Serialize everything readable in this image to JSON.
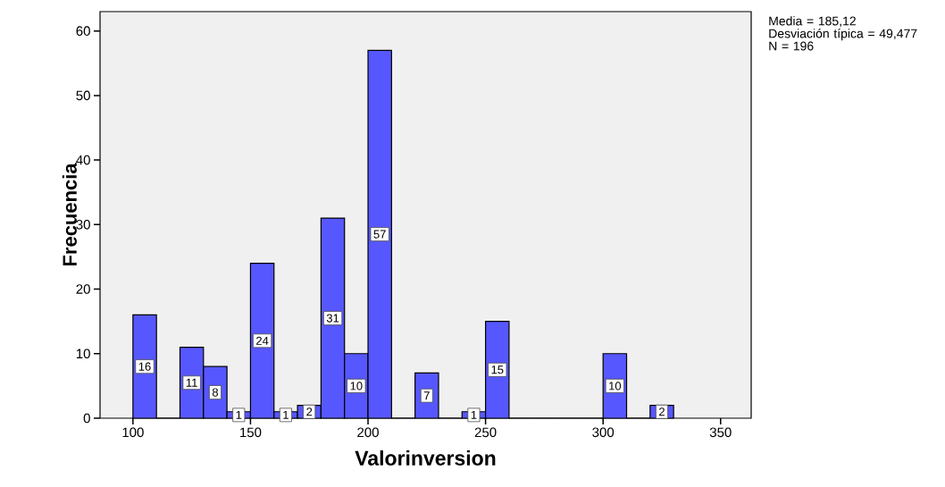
{
  "chart_data": {
    "type": "histogram",
    "xlabel": "Valorinversion",
    "ylabel": "Frecuencia",
    "bins": [
      100,
      110,
      120,
      130,
      140,
      150,
      160,
      170,
      180,
      190,
      200,
      210,
      220,
      230,
      240,
      250,
      260,
      270,
      280,
      290,
      300,
      310,
      320,
      330
    ],
    "values": [
      16,
      0,
      11,
      8,
      1,
      24,
      1,
      2,
      31,
      10,
      57,
      0,
      7,
      0,
      1,
      15,
      0,
      0,
      0,
      0,
      10,
      0,
      2
    ],
    "value_labels": [
      "16",
      null,
      "11",
      "8",
      "1",
      "24",
      "1",
      "2",
      "31",
      "10",
      "57",
      null,
      "7",
      null,
      "1",
      "15",
      null,
      null,
      null,
      null,
      "10",
      null,
      "2"
    ],
    "color": "#5757ff",
    "xlim": [
      86,
      363
    ],
    "ylim": [
      0,
      63
    ],
    "xticks": [
      100,
      150,
      200,
      250,
      300,
      350
    ],
    "yticks": [
      0,
      10,
      20,
      30,
      40,
      50,
      60
    ],
    "grid": false,
    "annotations": [
      "Media = 185,12",
      "Desviación típica = 49,477",
      "N = 196"
    ]
  }
}
